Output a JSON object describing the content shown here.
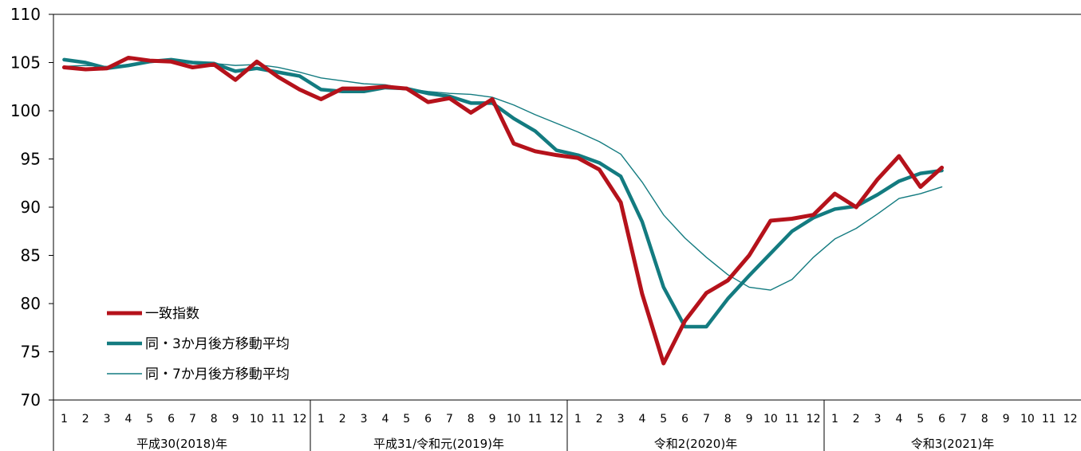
{
  "chart_data": {
    "type": "line",
    "title": "",
    "xlabel": "",
    "ylabel": "",
    "ylim": [
      70,
      110
    ],
    "yticks": [
      70,
      75,
      80,
      85,
      90,
      95,
      100,
      105,
      110
    ],
    "ytick_labels": [
      "70",
      "75",
      "80",
      "85",
      "90",
      "95",
      "100",
      "105",
      "110"
    ],
    "grid": false,
    "legend_position": "bottom-left",
    "month_labels": [
      "1",
      "2",
      "3",
      "4",
      "5",
      "6",
      "7",
      "8",
      "9",
      "10",
      "11",
      "12"
    ],
    "year_groups": [
      {
        "label": "平成30(2018)年",
        "months": 12
      },
      {
        "label": "平成31/令和元(2019)年",
        "months": 12
      },
      {
        "label": "令和2(2020)年",
        "months": 12
      },
      {
        "label": "令和3(2021)年",
        "months": 12
      }
    ],
    "series": [
      {
        "name": "一致指数",
        "color": "#b5121b",
        "style": "thick",
        "values": [
          104.5,
          104.3,
          104.4,
          105.5,
          105.2,
          105.1,
          104.5,
          104.8,
          103.2,
          105.1,
          103.5,
          102.2,
          101.2,
          102.3,
          102.3,
          102.5,
          102.3,
          100.9,
          101.3,
          99.8,
          101.2,
          96.6,
          95.8,
          95.4,
          95.1,
          93.9,
          90.5,
          81.0,
          73.8,
          78.2,
          81.1,
          82.4,
          85.0,
          88.6,
          88.8,
          89.2,
          91.4,
          90.0,
          92.9,
          95.3,
          92.1,
          94.1
        ]
      },
      {
        "name": "同・3か月後方移動平均",
        "color": "#137b80",
        "style": "medium",
        "values": [
          105.3,
          105.0,
          104.4,
          104.7,
          105.1,
          105.3,
          105.0,
          104.9,
          104.1,
          104.4,
          104.0,
          103.6,
          102.2,
          102.0,
          102.0,
          102.4,
          102.3,
          101.8,
          101.5,
          100.8,
          100.8,
          99.2,
          97.9,
          95.9,
          95.4,
          94.6,
          93.2,
          88.5,
          81.7,
          77.6,
          77.6,
          80.5,
          82.9,
          85.2,
          87.5,
          88.9,
          89.8,
          90.1,
          91.3,
          92.7,
          93.5,
          93.8
        ]
      },
      {
        "name": "同・7か月後方移動平均",
        "color": "#137b80",
        "style": "thin",
        "values": [
          104.6,
          104.7,
          104.6,
          104.8,
          105.0,
          105.2,
          105.0,
          104.9,
          104.7,
          104.8,
          104.5,
          104.0,
          103.4,
          103.1,
          102.8,
          102.7,
          102.3,
          102.0,
          101.8,
          101.7,
          101.4,
          100.6,
          99.6,
          98.7,
          97.8,
          96.8,
          95.5,
          92.6,
          89.2,
          86.8,
          84.8,
          83.0,
          81.7,
          81.4,
          82.5,
          84.8,
          86.7,
          87.8,
          89.3,
          90.9,
          91.4,
          92.1
        ]
      }
    ]
  }
}
